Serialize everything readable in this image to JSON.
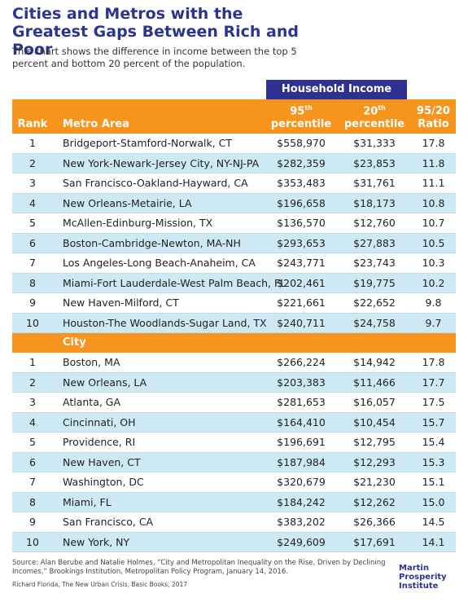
{
  "header": {
    "title": "Cities and Metros with the Greatest Gaps Between Rich and Poor",
    "subtitle": "This chart shows the difference in income between the top 5 percent and bottom 20 percent of the population."
  },
  "table": {
    "group_header": "Household Income",
    "columns": [
      {
        "label": "Rank"
      },
      {
        "label": "Metro Area"
      },
      {
        "main": "95",
        "sup": "th",
        "label": "percentile"
      },
      {
        "main": "20",
        "sup": "th",
        "label": "percentile"
      },
      {
        "main": "95/20",
        "label": "Ratio"
      }
    ],
    "metro_rows": [
      [
        "1",
        "Bridgeport-Stamford-Norwalk, CT",
        "$558,970",
        "$31,333",
        "17.8"
      ],
      [
        "2",
        "New York-Newark-Jersey City, NY-NJ-PA",
        "$282,359",
        "$23,853",
        "11.8"
      ],
      [
        "3",
        "San Francisco-Oakland-Hayward, CA",
        "$353,483",
        "$31,761",
        "11.1"
      ],
      [
        "4",
        "New Orleans-Metairie, LA",
        "$196,658",
        "$18,173",
        "10.8"
      ],
      [
        "5",
        "McAllen-Edinburg-Mission, TX",
        "$136,570",
        "$12,760",
        "10.7"
      ],
      [
        "6",
        "Boston-Cambridge-Newton, MA-NH",
        "$293,653",
        "$27,883",
        "10.5"
      ],
      [
        "7",
        "Los Angeles-Long Beach-Anaheim, CA",
        "$243,771",
        "$23,743",
        "10.3"
      ],
      [
        "8",
        "Miami-Fort Lauderdale-West Palm Beach, FL",
        "$202,461",
        "$19,775",
        "10.2"
      ],
      [
        "9",
        "New Haven-Milford, CT",
        "$221,661",
        "$22,652",
        "9.8"
      ],
      [
        "10",
        "Houston-The Woodlands-Sugar Land, TX",
        "$240,711",
        "$24,758",
        "9.7"
      ]
    ],
    "city_header": "City",
    "city_rows": [
      [
        "1",
        "Boston, MA",
        "$266,224",
        "$14,942",
        "17.8"
      ],
      [
        "2",
        "New Orleans, LA",
        "$203,383",
        "$11,466",
        "17.7"
      ],
      [
        "3",
        "Atlanta, GA",
        "$281,653",
        "$16,057",
        "17.5"
      ],
      [
        "4",
        "Cincinnati, OH",
        "$164,410",
        "$10,454",
        "15.7"
      ],
      [
        "5",
        "Providence, RI",
        "$196,691",
        "$12,795",
        "15.4"
      ],
      [
        "6",
        "New Haven, CT",
        "$187,984",
        "$12,293",
        "15.3"
      ],
      [
        "7",
        "Washington, DC",
        "$320,679",
        "$21,230",
        "15.1"
      ],
      [
        "8",
        "Miami, FL",
        "$184,242",
        "$12,262",
        "15.0"
      ],
      [
        "9",
        "San Francisco, CA",
        "$383,202",
        "$26,366",
        "14.5"
      ],
      [
        "10",
        "New York, NY",
        "$249,609",
        "$17,691",
        "14.1"
      ]
    ]
  },
  "footer": {
    "source": "Source: Alan Berube and Natalie Holmes, “City and Metropolitan Inequality on the Rise, Driven by Declining Incomes,” Brookings Institution, Metropolitan Policy Program, January 14, 2016.",
    "credit": "Richard Florida, The New Urban Crisis, Basic Books, 2017",
    "logo": [
      "Martin",
      "Prosperity",
      "Institute"
    ]
  }
}
